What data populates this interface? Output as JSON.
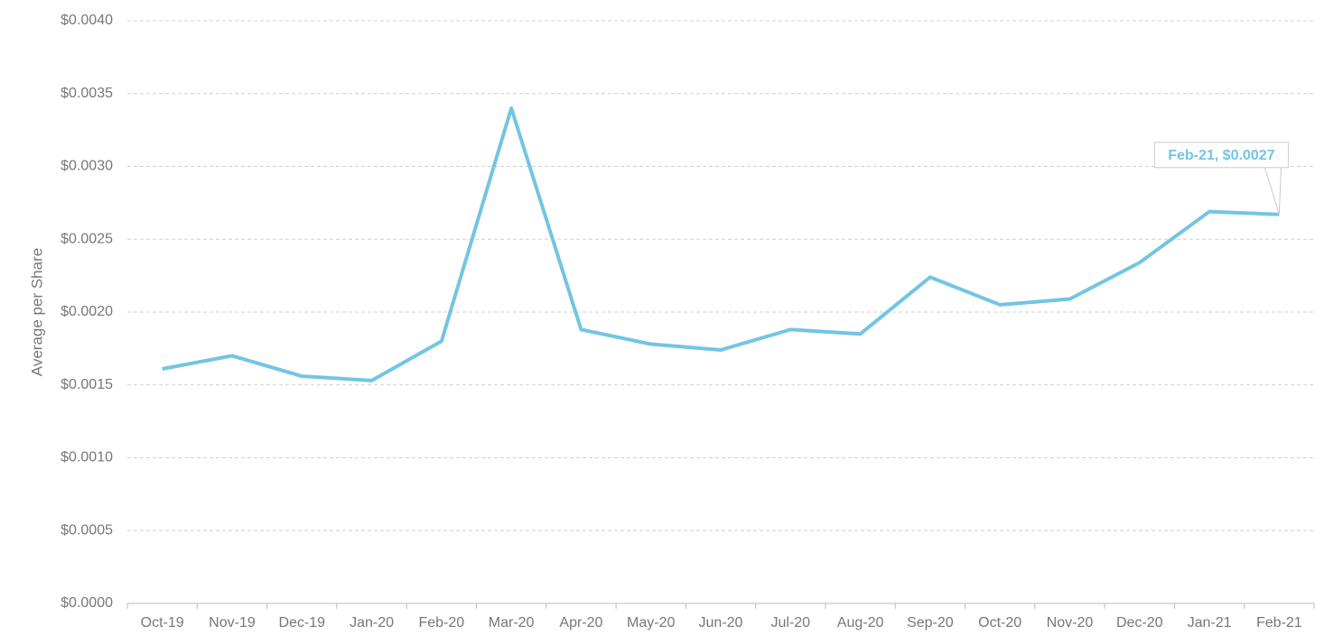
{
  "chart_data": {
    "type": "line",
    "y_label": "Average per Share",
    "categories": [
      "Oct-19",
      "Nov-19",
      "Dec-19",
      "Jan-20",
      "Feb-20",
      "Mar-20",
      "Apr-20",
      "May-20",
      "Jun-20",
      "Jul-20",
      "Aug-20",
      "Sep-20",
      "Oct-20",
      "Nov-20",
      "Dec-20",
      "Jan-21",
      "Feb-21"
    ],
    "values": [
      0.00161,
      0.0017,
      0.00156,
      0.00153,
      0.0018,
      0.0034,
      0.00188,
      0.00178,
      0.00174,
      0.00188,
      0.00185,
      0.00224,
      0.00205,
      0.00209,
      0.00234,
      0.00269,
      0.00267
    ],
    "color": "#72c5e3",
    "ylim": [
      0,
      0.004
    ],
    "yticks": [
      {
        "value": 0,
        "label": "$0.0000"
      },
      {
        "value": 0.0005,
        "label": "$0.0005"
      },
      {
        "value": 0.001,
        "label": "$0.0010"
      },
      {
        "value": 0.0015,
        "label": "$0.0015"
      },
      {
        "value": 0.002,
        "label": "$0.0020"
      },
      {
        "value": 0.0025,
        "label": "$0.0025"
      },
      {
        "value": 0.003,
        "label": "$0.0030"
      },
      {
        "value": 0.0035,
        "label": "$0.0035"
      },
      {
        "value": 0.004,
        "label": "$0.0040"
      }
    ],
    "grid": true,
    "annotation": "Feb-21, $0.0027"
  }
}
